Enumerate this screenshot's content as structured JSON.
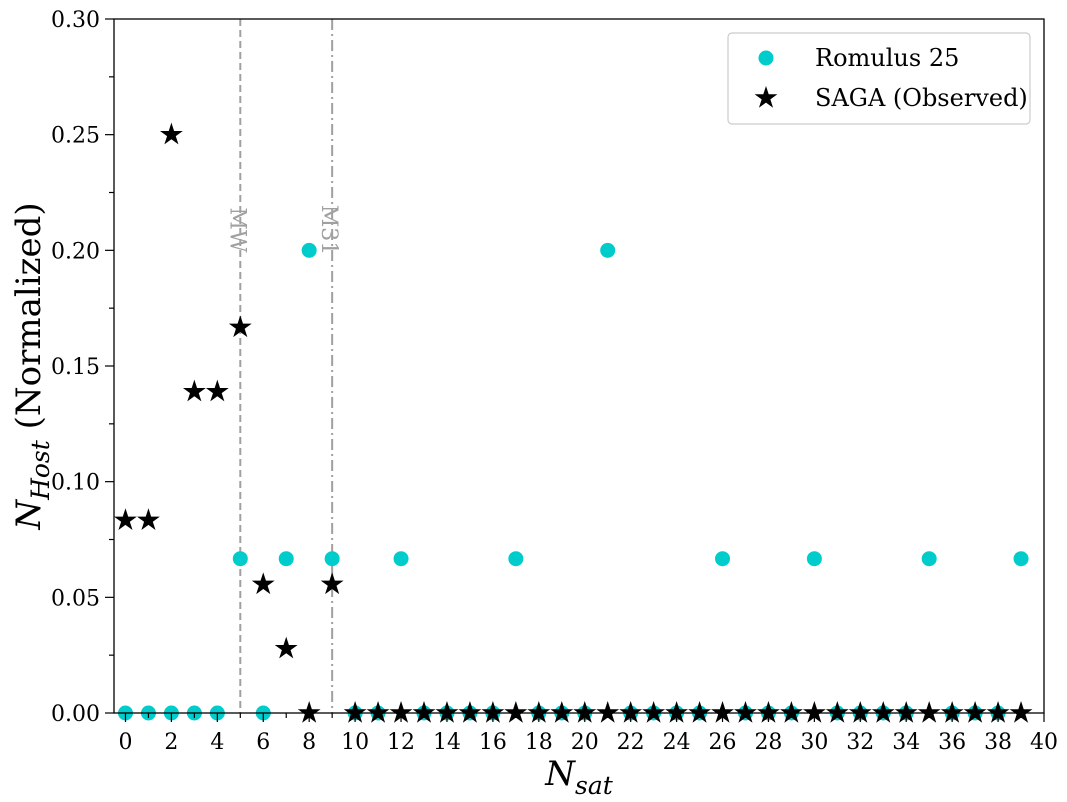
{
  "chart_data": {
    "type": "scatter",
    "xlabel": "N",
    "xlabel_sub": "sat",
    "ylabel": "N",
    "ylabel_sub": "Host",
    "ylabel_suffix": " (Normalized)",
    "xlim": [
      -0.5,
      40
    ],
    "ylim": [
      0,
      0.3
    ],
    "x_ticks": [
      0,
      2,
      4,
      6,
      8,
      10,
      12,
      14,
      16,
      18,
      20,
      22,
      24,
      26,
      28,
      30,
      32,
      34,
      36,
      38,
      40
    ],
    "y_ticks": [
      "0.00",
      "0.05",
      "0.10",
      "0.15",
      "0.20",
      "0.25",
      "0.30"
    ],
    "legend_position": "top-right",
    "grid": false,
    "vlines": [
      {
        "x": 5,
        "label": "MW",
        "style": "dashed",
        "color": "#a0a0a0"
      },
      {
        "x": 9,
        "label": "M31",
        "style": "dashdot",
        "color": "#a0a0a0"
      }
    ],
    "series": [
      {
        "name": "Romulus 25",
        "marker": "circle",
        "color": "#00cccc",
        "x": [
          0,
          1,
          2,
          3,
          4,
          5,
          6,
          7,
          8,
          9,
          10,
          11,
          12,
          13,
          14,
          15,
          16,
          17,
          18,
          19,
          20,
          21,
          22,
          23,
          24,
          25,
          26,
          27,
          28,
          29,
          30,
          31,
          32,
          33,
          34,
          35,
          36,
          37,
          38,
          39
        ],
        "values": [
          0,
          0,
          0,
          0,
          0,
          0.0667,
          0,
          0.0667,
          0.2,
          0.0667,
          0,
          0,
          0.0667,
          0,
          0,
          0,
          0,
          0.0667,
          0,
          0,
          0,
          0.2,
          0,
          0,
          0,
          0,
          0.0667,
          0,
          0,
          0,
          0.0667,
          0,
          0,
          0,
          0,
          0.0667,
          0,
          0,
          0,
          0.0667
        ]
      },
      {
        "name": "SAGA (Observed)",
        "marker": "star",
        "color": "#000000",
        "x": [
          0,
          1,
          2,
          3,
          4,
          5,
          6,
          7,
          8,
          9,
          10,
          11,
          12,
          13,
          14,
          15,
          16,
          17,
          18,
          19,
          20,
          21,
          22,
          23,
          24,
          25,
          26,
          27,
          28,
          29,
          30,
          31,
          32,
          33,
          34,
          35,
          36,
          37,
          38,
          39
        ],
        "values": [
          0.0833,
          0.0833,
          0.25,
          0.1389,
          0.1389,
          0.1667,
          0.0556,
          0.0278,
          0,
          0.0556,
          0,
          0,
          0,
          0,
          0,
          0,
          0,
          0,
          0,
          0,
          0,
          0,
          0,
          0,
          0,
          0,
          0,
          0,
          0,
          0,
          0,
          0,
          0,
          0,
          0,
          0,
          0,
          0,
          0,
          0
        ]
      }
    ]
  }
}
